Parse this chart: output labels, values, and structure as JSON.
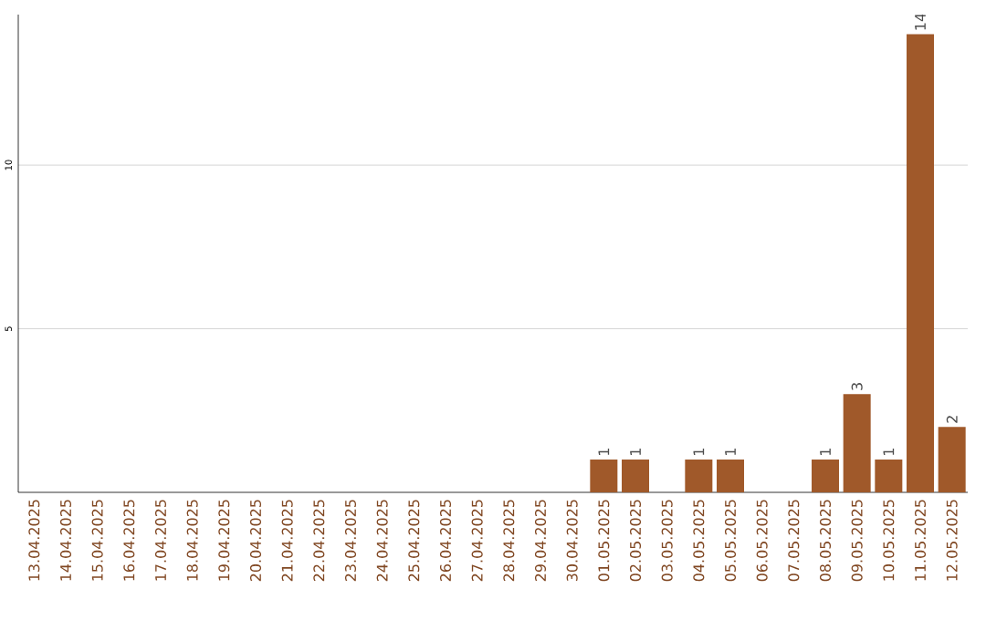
{
  "chart_data": {
    "type": "bar",
    "color": "#a0592a",
    "categories": [
      "13.04.2025",
      "14.04.2025",
      "15.04.2025",
      "16.04.2025",
      "17.04.2025",
      "18.04.2025",
      "19.04.2025",
      "20.04.2025",
      "21.04.2025",
      "22.04.2025",
      "23.04.2025",
      "24.04.2025",
      "25.04.2025",
      "26.04.2025",
      "27.04.2025",
      "28.04.2025",
      "29.04.2025",
      "30.04.2025",
      "01.05.2025",
      "02.05.2025",
      "03.05.2025",
      "04.05.2025",
      "05.05.2025",
      "06.05.2025",
      "07.05.2025",
      "08.05.2025",
      "09.05.2025",
      "10.05.2025",
      "11.05.2025",
      "12.05.2025"
    ],
    "values": [
      0,
      0,
      0,
      0,
      0,
      0,
      0,
      0,
      0,
      0,
      0,
      0,
      0,
      0,
      0,
      0,
      0,
      0,
      1,
      1,
      0,
      1,
      1,
      0,
      0,
      1,
      3,
      1,
      14,
      2
    ],
    "value_labels": [
      null,
      null,
      null,
      null,
      null,
      null,
      null,
      null,
      null,
      null,
      null,
      null,
      null,
      null,
      null,
      null,
      null,
      null,
      "1",
      "1",
      null,
      "1",
      "1",
      null,
      null,
      "1",
      "3",
      "1",
      "14",
      "2"
    ],
    "ylim": [
      0,
      14.6
    ],
    "yticks": [
      5,
      10
    ],
    "grid": "y"
  }
}
